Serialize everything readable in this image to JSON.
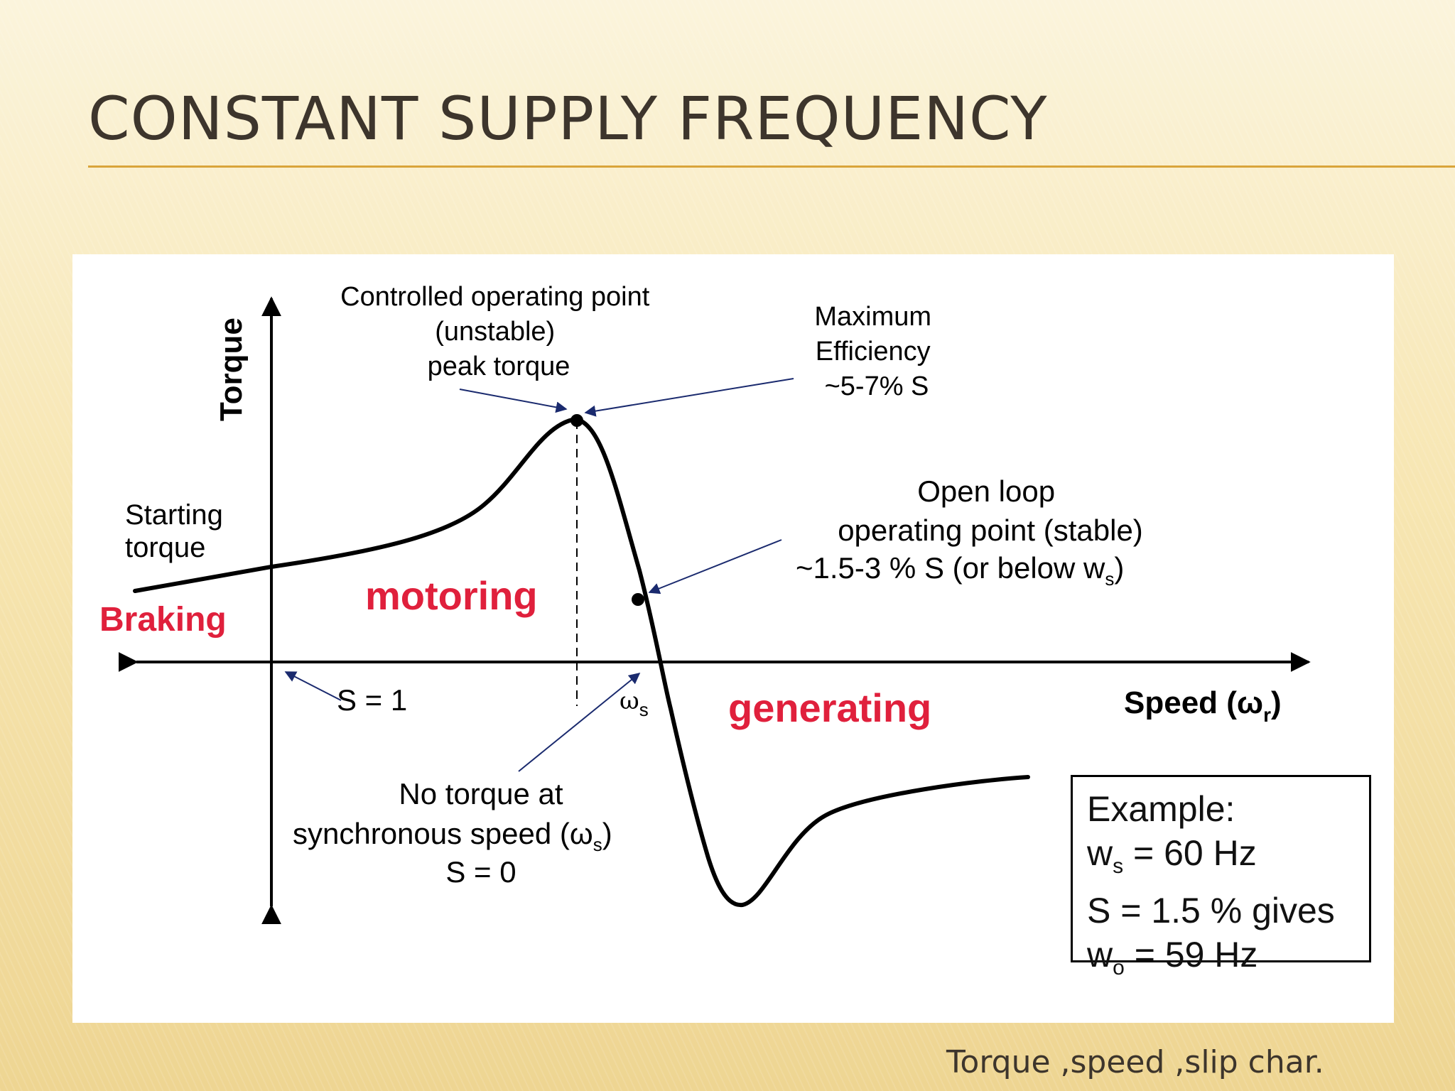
{
  "slide": {
    "title": "CONSTANT SUPPLY FREQUENCY",
    "caption": "Torque ,speed ,slip char."
  },
  "colors": {
    "accent_rule": "#d9a43a",
    "region_label": "#e0203c",
    "curve": "#000000",
    "pointer_arrow": "#1a2a6e"
  },
  "diagram": {
    "axis_y_label": "Torque",
    "axis_x_label_main": "Speed (ω",
    "axis_x_label_sub": "r",
    "axis_x_label_end": ")",
    "starting_torque": [
      "Starting",
      "torque"
    ],
    "braking": "Braking",
    "motoring": "motoring",
    "generating": "generating",
    "s_equals_1": "S = 1",
    "omega_s_main": "ω",
    "omega_s_sub": "s",
    "controlled_point": [
      "Controlled operating point",
      "(unstable)",
      "peak torque"
    ],
    "max_efficiency": [
      "Maximum",
      "Efficiency",
      "~5-7% S"
    ],
    "open_loop": [
      "Open loop",
      "operating point (stable)"
    ],
    "open_loop_line3_main": "~1.5-3 % S (or below w",
    "open_loop_line3_sub": "s",
    "open_loop_line3_end": ")",
    "no_torque_line1": "No torque at",
    "no_torque_line2_main": "synchronous speed (ω",
    "no_torque_line2_sub": "s",
    "no_torque_line2_end": ")",
    "no_torque_line3": "S = 0"
  },
  "example": {
    "title": "Example:",
    "ws_main": "w",
    "ws_sub": "s",
    "ws_rest": " = 60 Hz",
    "slip_line": "S = 1.5 % gives",
    "wo_main": "w",
    "wo_sub": "o",
    "wo_rest": " = 59 Hz"
  }
}
